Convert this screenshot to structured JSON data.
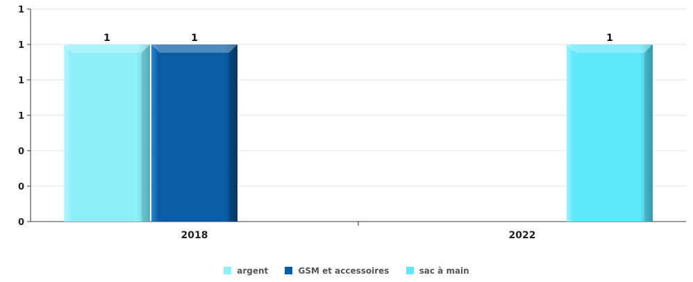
{
  "chart_data": {
    "type": "bar",
    "categories": [
      "2018",
      "2022"
    ],
    "y_tick_labels": [
      "0",
      "0",
      "0",
      "1",
      "1",
      "1",
      "1"
    ],
    "ylim": [
      0,
      1.2
    ],
    "grid": true,
    "legend_position": "bottom",
    "series": [
      {
        "name": "argent",
        "color": "#8eeffb",
        "values": [
          1,
          null
        ],
        "data_labels": [
          "1",
          ""
        ]
      },
      {
        "name": "GSM et accessoires",
        "color": "#0a5ea6",
        "values": [
          1,
          null
        ],
        "data_labels": [
          "1",
          ""
        ]
      },
      {
        "name": "sac à main",
        "color": "#5fe7fa",
        "values": [
          null,
          1
        ],
        "data_labels": [
          "",
          "1"
        ]
      }
    ]
  }
}
